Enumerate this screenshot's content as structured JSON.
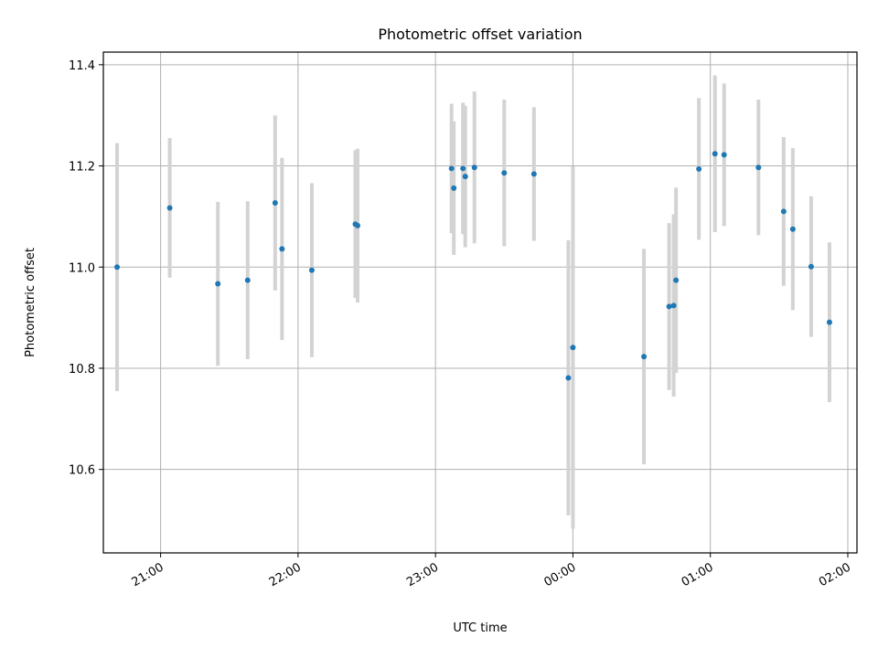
{
  "chart_data": {
    "type": "scatter",
    "title": "Photometric offset variation",
    "xlabel": "UTC time",
    "ylabel": "Photometric offset",
    "x_axis": {
      "type": "time",
      "range": [
        "20:35",
        "02:04"
      ],
      "ticks": [
        "21:00",
        "22:00",
        "23:00",
        "00:00",
        "01:00",
        "02:00"
      ]
    },
    "y_axis": {
      "range": [
        10.435,
        11.425
      ],
      "ticks": [
        "10.6",
        "10.8",
        "11.0",
        "11.2",
        "11.4"
      ]
    },
    "grid": true,
    "colors": {
      "marker": "#1f77b4",
      "errorbar": "#d3d3d3",
      "grid": "#b0b0b0"
    },
    "points": [
      {
        "time": "20:41",
        "y": 11.0,
        "yerr": 0.245
      },
      {
        "time": "21:04",
        "y": 11.117,
        "yerr": 0.138
      },
      {
        "time": "21:25",
        "y": 10.967,
        "yerr": 0.162
      },
      {
        "time": "21:38",
        "y": 10.974,
        "yerr": 0.156
      },
      {
        "time": "21:50",
        "y": 11.127,
        "yerr": 0.173
      },
      {
        "time": "21:53",
        "y": 11.036,
        "yerr": 0.18
      },
      {
        "time": "22:06",
        "y": 10.994,
        "yerr": 0.172
      },
      {
        "time": "22:25",
        "y": 11.085,
        "yerr": 0.146
      },
      {
        "time": "22:26",
        "y": 11.082,
        "yerr": 0.152
      },
      {
        "time": "23:07",
        "y": 11.195,
        "yerr": 0.128
      },
      {
        "time": "23:08",
        "y": 11.156,
        "yerr": 0.132
      },
      {
        "time": "23:12",
        "y": 11.195,
        "yerr": 0.13
      },
      {
        "time": "23:13",
        "y": 11.179,
        "yerr": 0.14
      },
      {
        "time": "23:17",
        "y": 11.197,
        "yerr": 0.15
      },
      {
        "time": "23:30",
        "y": 11.186,
        "yerr": 0.145
      },
      {
        "time": "23:43",
        "y": 11.184,
        "yerr": 0.132
      },
      {
        "time": "23:58",
        "y": 10.781,
        "yerr": 0.272
      },
      {
        "time": "00:00",
        "y": 10.841,
        "yerr": 0.358
      },
      {
        "time": "00:31",
        "y": 10.823,
        "yerr": 0.213
      },
      {
        "time": "00:42",
        "y": 10.922,
        "yerr": 0.165
      },
      {
        "time": "00:44",
        "y": 10.924,
        "yerr": 0.18
      },
      {
        "time": "00:45",
        "y": 10.974,
        "yerr": 0.183
      },
      {
        "time": "00:55",
        "y": 11.194,
        "yerr": 0.14
      },
      {
        "time": "01:02",
        "y": 11.224,
        "yerr": 0.155
      },
      {
        "time": "01:06",
        "y": 11.222,
        "yerr": 0.141
      },
      {
        "time": "01:21",
        "y": 11.197,
        "yerr": 0.134
      },
      {
        "time": "01:32",
        "y": 11.11,
        "yerr": 0.147
      },
      {
        "time": "01:36",
        "y": 11.075,
        "yerr": 0.16
      },
      {
        "time": "01:44",
        "y": 11.001,
        "yerr": 0.139
      },
      {
        "time": "01:52",
        "y": 10.891,
        "yerr": 0.158
      }
    ]
  }
}
